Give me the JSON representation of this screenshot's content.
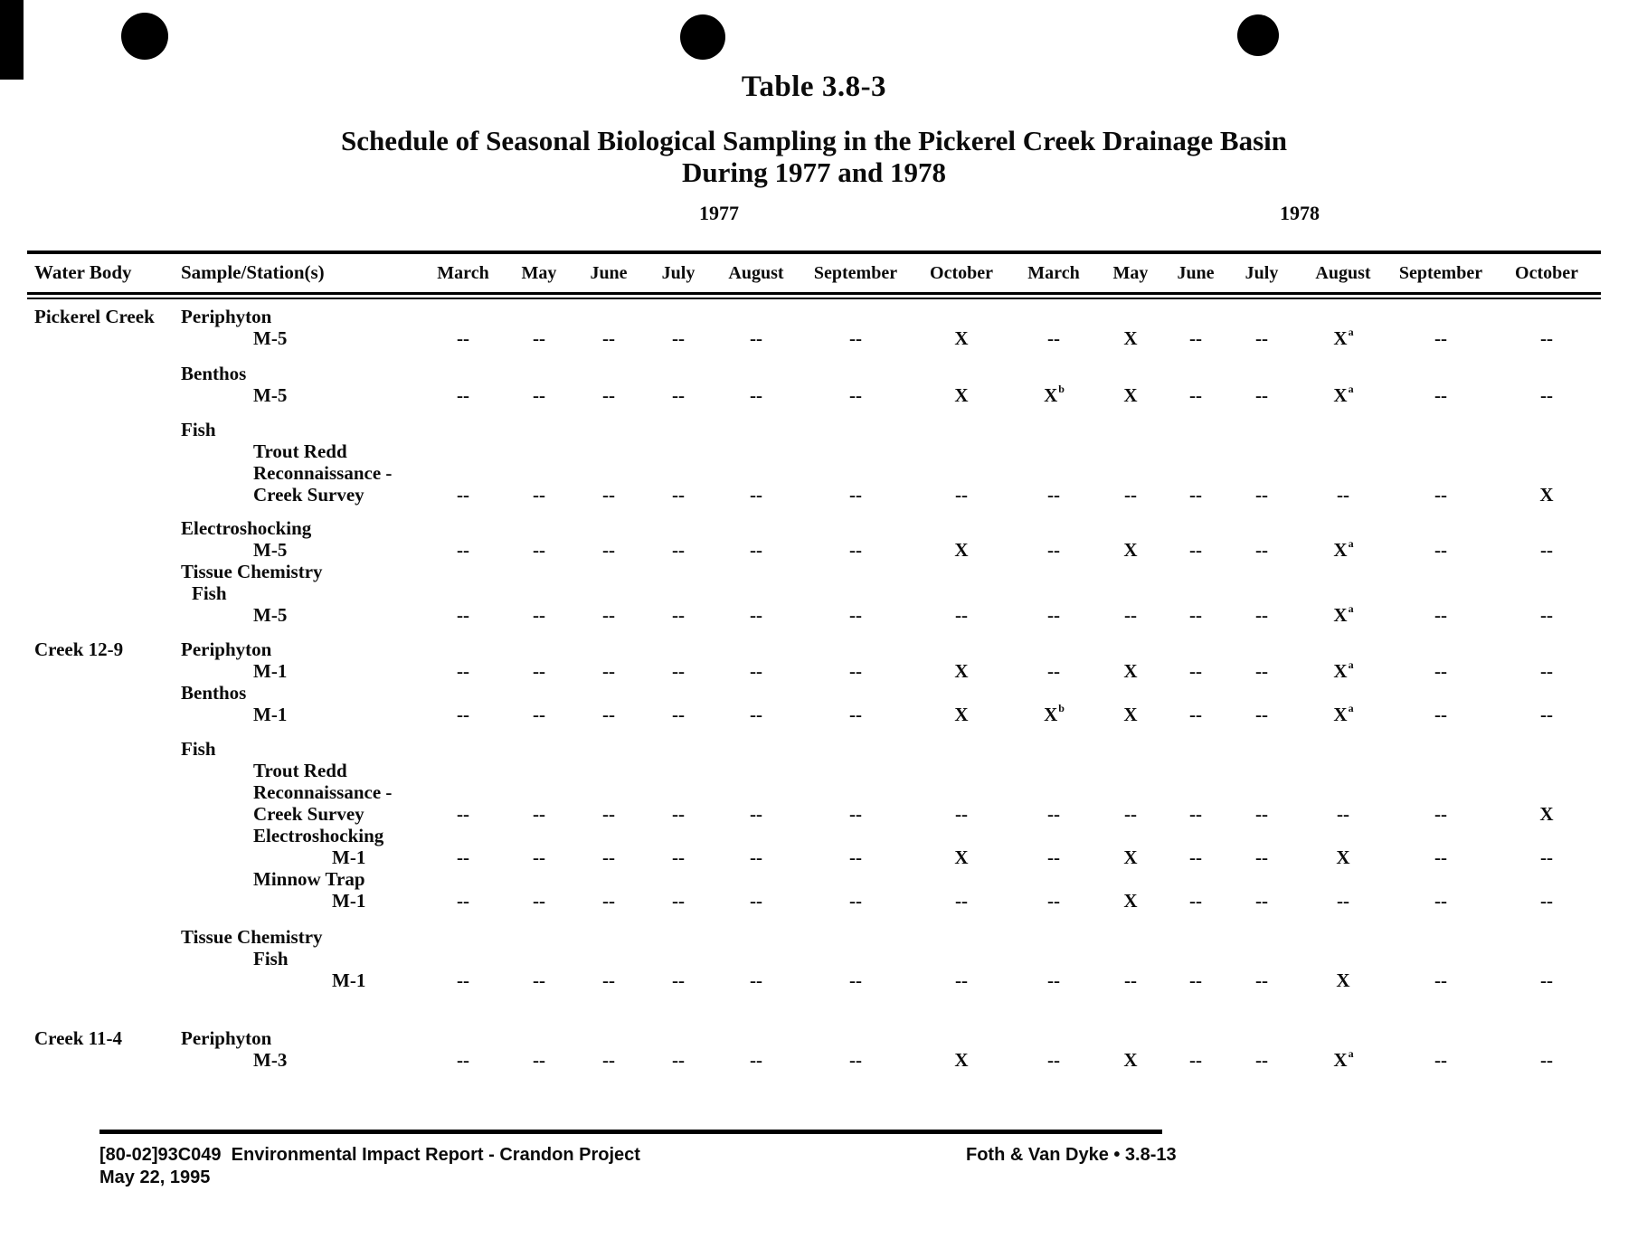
{
  "page": {
    "table_number": "Table 3.8-3",
    "title_line1": "Schedule of Seasonal Biological Sampling in the Pickerel Creek Drainage Basin",
    "title_line2": "During 1977 and 1978"
  },
  "table": {
    "corner_headers": [
      "Water Body",
      "Sample/Station(s)"
    ],
    "year_groups": [
      {
        "year": "1977",
        "months": [
          "March",
          "May",
          "June",
          "July",
          "August",
          "September",
          "October"
        ]
      },
      {
        "year": "1978",
        "months": [
          "March",
          "May",
          "June",
          "July",
          "August",
          "September",
          "October"
        ]
      }
    ],
    "lines": [
      {
        "water": "Pickerel Creek",
        "text": "Periphyton",
        "indent": "1",
        "gap": 0
      },
      {
        "text": "M-5",
        "indent": "2",
        "cells": [
          "--",
          "--",
          "--",
          "--",
          "--",
          "--",
          "X",
          "--",
          "X",
          "--",
          "--",
          "X^a",
          "--",
          "--"
        ]
      },
      {
        "text": "Benthos",
        "indent": "1",
        "gap": 15
      },
      {
        "text": "M-5",
        "indent": "2",
        "cells": [
          "--",
          "--",
          "--",
          "--",
          "--",
          "--",
          "X",
          "X^b",
          "X",
          "--",
          "--",
          "X^a",
          "--",
          "--"
        ]
      },
      {
        "text": "Fish",
        "indent": "1",
        "gap": 14
      },
      {
        "text": "Trout Redd",
        "indent": "2"
      },
      {
        "text": "Reconnaissance -",
        "indent": "2"
      },
      {
        "text": "Creek Survey",
        "indent": "2",
        "cells": [
          "--",
          "--",
          "--",
          "--",
          "--",
          "--",
          "--",
          "--",
          "--",
          "--",
          "--",
          "--",
          "--",
          "X"
        ]
      },
      {
        "text": "Electroshocking",
        "indent": "1",
        "gap": 13
      },
      {
        "text": "M-5",
        "indent": "2",
        "cells": [
          "--",
          "--",
          "--",
          "--",
          "--",
          "--",
          "X",
          "--",
          "X",
          "--",
          "--",
          "X^a",
          "--",
          "--"
        ]
      },
      {
        "text": "Tissue Chemistry",
        "indent": "1",
        "gap": 0
      },
      {
        "text": "Fish",
        "indent": "1.5"
      },
      {
        "text": "M-5",
        "indent": "2",
        "cells": [
          "--",
          "--",
          "--",
          "--",
          "--",
          "--",
          "--",
          "--",
          "--",
          "--",
          "--",
          "X^a",
          "--",
          "--"
        ]
      },
      {
        "water": "Creek 12-9",
        "text": "Periphyton",
        "indent": "1",
        "gap": 14
      },
      {
        "text": "M-1",
        "indent": "2",
        "cells": [
          "--",
          "--",
          "--",
          "--",
          "--",
          "--",
          "X",
          "--",
          "X",
          "--",
          "--",
          "X^a",
          "--",
          "--"
        ]
      },
      {
        "text": "Benthos",
        "indent": "1",
        "gap": 0
      },
      {
        "text": "M-1",
        "indent": "2",
        "cells": [
          "--",
          "--",
          "--",
          "--",
          "--",
          "--",
          "X",
          "X^b",
          "X",
          "--",
          "--",
          "X^a",
          "--",
          "--"
        ]
      },
      {
        "text": "Fish",
        "indent": "1",
        "gap": 14
      },
      {
        "text": "Trout Redd",
        "indent": "2"
      },
      {
        "text": "Reconnaissance -",
        "indent": "2"
      },
      {
        "text": "Creek Survey",
        "indent": "2",
        "cells": [
          "--",
          "--",
          "--",
          "--",
          "--",
          "--",
          "--",
          "--",
          "--",
          "--",
          "--",
          "--",
          "--",
          "X"
        ]
      },
      {
        "text": "Electroshocking",
        "indent": "2"
      },
      {
        "text": "M-1",
        "indent": "3",
        "cells": [
          "--",
          "--",
          "--",
          "--",
          "--",
          "--",
          "X",
          "--",
          "X",
          "--",
          "--",
          "X",
          "--",
          "--"
        ]
      },
      {
        "text": "Minnow Trap",
        "indent": "2"
      },
      {
        "text": "M-1",
        "indent": "3",
        "cells": [
          "--",
          "--",
          "--",
          "--",
          "--",
          "--",
          "--",
          "--",
          "X",
          "--",
          "--",
          "--",
          "--",
          "--"
        ]
      },
      {
        "text": "Tissue Chemistry",
        "indent": "1",
        "gap": 16
      },
      {
        "text": "Fish",
        "indent": "2"
      },
      {
        "text": "M-1",
        "indent": "3",
        "cells": [
          "--",
          "--",
          "--",
          "--",
          "--",
          "--",
          "--",
          "--",
          "--",
          "--",
          "--",
          "X",
          "--",
          "--"
        ]
      },
      {
        "water": "Creek 11-4",
        "text": "Periphyton",
        "indent": "1",
        "gap": 40
      },
      {
        "text": "M-3",
        "indent": "2",
        "cells": [
          "--",
          "--",
          "--",
          "--",
          "--",
          "--",
          "X",
          "--",
          "X",
          "--",
          "--",
          "X^a",
          "--",
          "--"
        ]
      }
    ]
  },
  "footer": {
    "doc_ref": "[80-02]93C049  Environmental Impact Report - Crandon Project",
    "date": "May 22, 1995",
    "page_ref": "Foth & Van Dyke • 3.8-13"
  }
}
